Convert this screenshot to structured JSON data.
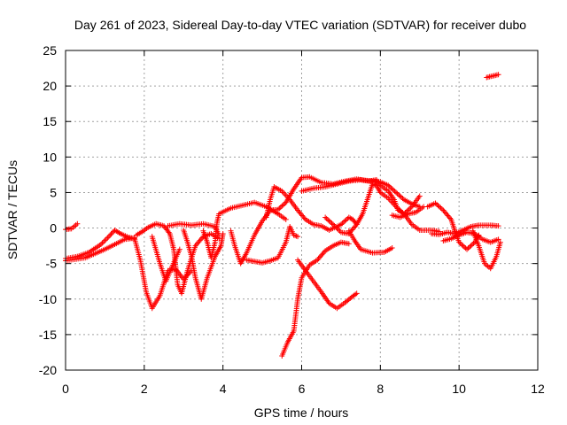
{
  "chart_data": {
    "type": "scatter",
    "title": "Day 261 of 2023, Sidereal Day-to-day VTEC variation (SDTVAR) for receiver dubo",
    "xlabel": "GPS time / hours",
    "ylabel": "SDTVAR / TECUs",
    "xlim": [
      0,
      12
    ],
    "ylim": [
      -20,
      25
    ],
    "x_ticks": [
      0,
      2,
      4,
      6,
      8,
      10,
      12
    ],
    "y_ticks": [
      -20,
      -15,
      -10,
      -5,
      0,
      5,
      10,
      15,
      20,
      25
    ],
    "grid": true,
    "marker": "+",
    "series": [
      {
        "name": "SDTVAR",
        "color": "#ff0000",
        "tracks": [
          [
            [
              0.0,
              -0.2
            ],
            [
              0.15,
              -0.1
            ],
            [
              0.3,
              0.6
            ]
          ],
          [
            [
              0.0,
              -4.3
            ],
            [
              0.3,
              -4.0
            ],
            [
              0.6,
              -3.4
            ],
            [
              0.9,
              -2.3
            ],
            [
              1.1,
              -1.2
            ],
            [
              1.25,
              -0.3
            ],
            [
              1.4,
              -0.8
            ],
            [
              1.6,
              -1.3
            ],
            [
              1.75,
              -1.5
            ]
          ],
          [
            [
              0.0,
              -4.6
            ],
            [
              0.5,
              -4.2
            ],
            [
              1.0,
              -3.0
            ],
            [
              1.5,
              -1.6
            ],
            [
              1.75,
              -1.4
            ]
          ],
          [
            [
              1.75,
              -1.4
            ],
            [
              1.9,
              -4.5
            ],
            [
              2.05,
              -9.0
            ],
            [
              2.2,
              -11.3
            ],
            [
              2.4,
              -9.5
            ],
            [
              2.6,
              -6.0
            ],
            [
              2.8,
              -5.8
            ],
            [
              3.0,
              -7.2
            ],
            [
              3.2,
              -6.0
            ]
          ],
          [
            [
              1.8,
              -1.0
            ],
            [
              1.95,
              -0.5
            ],
            [
              2.1,
              0.1
            ],
            [
              2.3,
              0.6
            ],
            [
              2.5,
              0.3
            ],
            [
              2.65,
              -0.8
            ],
            [
              2.75,
              -3.0
            ],
            [
              2.85,
              -8.0
            ],
            [
              2.95,
              -9.2
            ],
            [
              3.1,
              -6.0
            ],
            [
              3.3,
              -2.5
            ],
            [
              3.5,
              -1.2
            ],
            [
              3.7,
              -0.8
            ],
            [
              3.9,
              -1.5
            ]
          ],
          [
            [
              2.2,
              -1.2
            ],
            [
              2.4,
              -5.0
            ],
            [
              2.55,
              -7.5
            ],
            [
              2.7,
              -5.5
            ],
            [
              2.9,
              -3.0
            ]
          ],
          [
            [
              3.0,
              -0.3
            ],
            [
              3.1,
              -2.0
            ],
            [
              3.2,
              -4.0
            ],
            [
              3.3,
              -7.0
            ],
            [
              3.45,
              -10.0
            ],
            [
              3.6,
              -7.0
            ],
            [
              3.8,
              -4.0
            ],
            [
              3.95,
              -2.5
            ],
            [
              4.0,
              -0.8
            ]
          ],
          [
            [
              2.6,
              0.3
            ],
            [
              2.9,
              0.6
            ],
            [
              3.2,
              0.4
            ],
            [
              3.5,
              0.6
            ],
            [
              3.8,
              0.2
            ],
            [
              3.9,
              -1.0
            ]
          ],
          [
            [
              3.5,
              -0.4
            ],
            [
              3.6,
              -2.0
            ],
            [
              3.7,
              -4.2
            ],
            [
              3.8,
              -2.0
            ],
            [
              3.85,
              0.8
            ],
            [
              3.9,
              2.0
            ],
            [
              4.2,
              2.8
            ],
            [
              4.5,
              3.2
            ],
            [
              4.8,
              3.6
            ],
            [
              5.1,
              3.0
            ],
            [
              5.4,
              2.0
            ],
            [
              5.6,
              1.2
            ]
          ],
          [
            [
              4.2,
              -0.4
            ],
            [
              4.3,
              -2.5
            ],
            [
              4.45,
              -5.0
            ],
            [
              4.6,
              -3.5
            ],
            [
              4.8,
              -1.0
            ],
            [
              5.0,
              1.0
            ],
            [
              5.2,
              2.5
            ],
            [
              5.4,
              2.6
            ],
            [
              5.6,
              3.6
            ],
            [
              5.8,
              5.5
            ],
            [
              6.0,
              7.1
            ],
            [
              6.2,
              7.2
            ],
            [
              6.5,
              6.4
            ],
            [
              6.8,
              6.2
            ],
            [
              7.1,
              6.6
            ],
            [
              7.4,
              6.9
            ],
            [
              7.7,
              6.6
            ],
            [
              7.9,
              6.8
            ],
            [
              8.0,
              6.0
            ],
            [
              8.2,
              5.2
            ],
            [
              8.35,
              4.0
            ],
            [
              8.45,
              2.5
            ],
            [
              8.6,
              2.0
            ]
          ],
          [
            [
              5.1,
              1.5
            ],
            [
              5.2,
              4.0
            ],
            [
              5.3,
              5.8
            ],
            [
              5.5,
              5.2
            ],
            [
              5.7,
              4.0
            ],
            [
              5.9,
              2.5
            ],
            [
              6.1,
              1.2
            ],
            [
              6.3,
              0.5
            ],
            [
              6.5,
              0.3
            ],
            [
              6.7,
              -0.3
            ],
            [
              7.0,
              0.5
            ],
            [
              7.2,
              1.5
            ],
            [
              7.3,
              1.2
            ],
            [
              7.4,
              0.5
            ]
          ],
          [
            [
              4.6,
              -4.5
            ],
            [
              4.8,
              -4.7
            ],
            [
              5.0,
              -4.9
            ],
            [
              5.2,
              -4.6
            ],
            [
              5.4,
              -4.2
            ],
            [
              5.6,
              -2.0
            ],
            [
              5.7,
              0.2
            ],
            [
              5.8,
              -1.0
            ],
            [
              5.9,
              -1.2
            ]
          ],
          [
            [
              6.0,
              5.2
            ],
            [
              6.3,
              5.6
            ],
            [
              6.6,
              5.8
            ],
            [
              6.9,
              6.2
            ],
            [
              7.2,
              6.6
            ],
            [
              7.5,
              6.8
            ],
            [
              7.8,
              6.6
            ],
            [
              8.0,
              6.5
            ],
            [
              8.2,
              6.0
            ],
            [
              8.4,
              5.0
            ],
            [
              8.6,
              4.0
            ],
            [
              8.8,
              3.4
            ],
            [
              9.0,
              3.0
            ]
          ],
          [
            [
              7.2,
              -0.4
            ],
            [
              7.35,
              -1.8
            ],
            [
              7.5,
              -3.0
            ],
            [
              7.8,
              -3.5
            ],
            [
              8.1,
              -3.4
            ],
            [
              8.3,
              -2.8
            ]
          ],
          [
            [
              5.5,
              -18.0
            ],
            [
              5.65,
              -16.0
            ],
            [
              5.8,
              -14.5
            ],
            [
              5.9,
              -10.0
            ],
            [
              6.0,
              -7.0
            ],
            [
              6.2,
              -5.2
            ],
            [
              6.4,
              -4.5
            ],
            [
              6.6,
              -3.2
            ],
            [
              6.8,
              -2.5
            ],
            [
              7.0,
              -2.0
            ],
            [
              7.2,
              -2.2
            ]
          ],
          [
            [
              5.9,
              -4.5
            ],
            [
              6.1,
              -6.0
            ],
            [
              6.3,
              -7.5
            ],
            [
              6.5,
              -9.0
            ],
            [
              6.7,
              -10.6
            ],
            [
              6.9,
              -11.3
            ],
            [
              7.1,
              -10.5
            ],
            [
              7.3,
              -9.6
            ],
            [
              7.4,
              -9.2
            ]
          ],
          [
            [
              6.6,
              1.5
            ],
            [
              6.8,
              0.5
            ],
            [
              7.0,
              -0.6
            ],
            [
              7.2,
              -0.8
            ],
            [
              7.4,
              0.5
            ],
            [
              7.55,
              2.0
            ],
            [
              7.7,
              4.5
            ],
            [
              7.8,
              6.2
            ],
            [
              7.9,
              6.0
            ],
            [
              8.0,
              5.0
            ],
            [
              8.2,
              4.2
            ],
            [
              8.4,
              3.0
            ],
            [
              8.6,
              2.0
            ],
            [
              8.8,
              0.5
            ],
            [
              9.0,
              -0.3
            ],
            [
              9.3,
              -0.3
            ],
            [
              9.5,
              -0.5
            ]
          ],
          [
            [
              8.3,
              1.8
            ],
            [
              8.5,
              1.5
            ],
            [
              8.7,
              2.0
            ],
            [
              8.9,
              2.2
            ],
            [
              9.1,
              3.0
            ]
          ],
          [
            [
              8.6,
              2.0
            ],
            [
              8.8,
              3.0
            ],
            [
              9.0,
              4.5
            ]
          ],
          [
            [
              9.3,
              -0.8
            ],
            [
              9.5,
              -0.9
            ],
            [
              9.7,
              -0.6
            ],
            [
              9.9,
              -0.8
            ],
            [
              10.1,
              -0.3
            ],
            [
              10.3,
              0.2
            ],
            [
              10.5,
              0.4
            ],
            [
              10.8,
              0.4
            ],
            [
              11.0,
              0.3
            ]
          ],
          [
            [
              9.2,
              3.0
            ],
            [
              9.4,
              3.5
            ],
            [
              9.6,
              2.5
            ],
            [
              9.8,
              1.2
            ],
            [
              9.9,
              -0.5
            ],
            [
              10.0,
              -2.0
            ],
            [
              10.2,
              -3.0
            ],
            [
              10.4,
              -2.0
            ],
            [
              10.5,
              -1.0
            ]
          ],
          [
            [
              9.6,
              -1.8
            ],
            [
              9.8,
              -1.5
            ],
            [
              10.0,
              -1.0
            ],
            [
              10.2,
              -0.6
            ],
            [
              10.4,
              -0.8
            ],
            [
              10.6,
              -1.6
            ],
            [
              10.8,
              -2.0
            ],
            [
              11.0,
              -1.6
            ]
          ],
          [
            [
              10.35,
              -0.4
            ],
            [
              10.5,
              -2.5
            ],
            [
              10.65,
              -5.0
            ],
            [
              10.8,
              -5.7
            ],
            [
              10.95,
              -4.0
            ],
            [
              11.05,
              -2.0
            ]
          ],
          [
            [
              10.7,
              21.2
            ],
            [
              10.85,
              21.4
            ],
            [
              11.0,
              21.6
            ]
          ]
        ]
      }
    ]
  }
}
